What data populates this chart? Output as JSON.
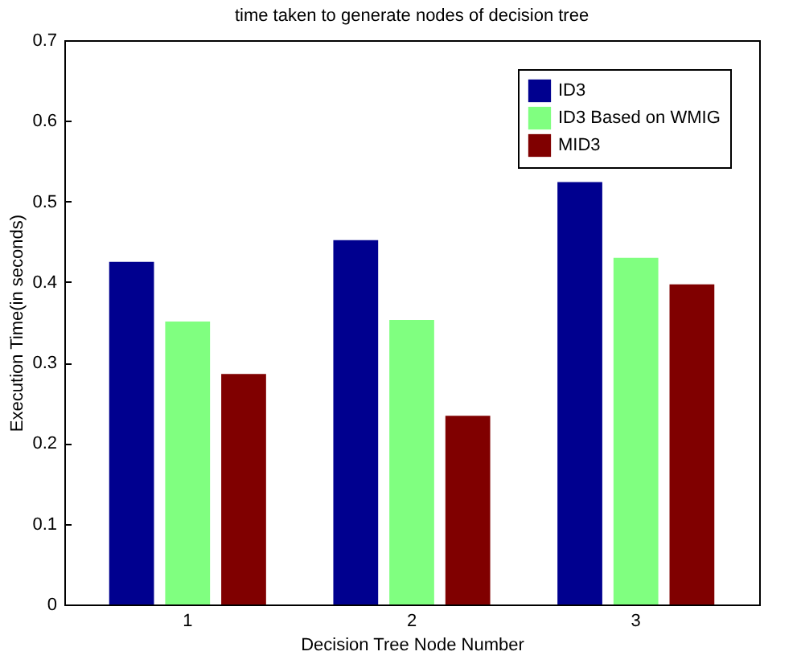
{
  "chart_data": {
    "type": "bar",
    "title": "time taken to generate nodes of decision tree",
    "xlabel": "Decision Tree Node Number",
    "ylabel": "Execution Time(in seconds)",
    "categories": [
      "1",
      "2",
      "3"
    ],
    "series": [
      {
        "name": "ID3",
        "color": "#00008f",
        "values": [
          0.425,
          0.452,
          0.524
        ]
      },
      {
        "name": "ID3 Based on WMIG",
        "color": "#80ff80",
        "values": [
          0.351,
          0.353,
          0.43
        ]
      },
      {
        "name": "MID3",
        "color": "#800000",
        "values": [
          0.286,
          0.234,
          0.397
        ]
      }
    ],
    "ylim": [
      0,
      0.7
    ],
    "yticks": [
      0,
      0.1,
      0.2,
      0.3,
      0.4,
      0.5,
      0.6,
      0.7
    ],
    "grid": false,
    "legend": "top right"
  }
}
